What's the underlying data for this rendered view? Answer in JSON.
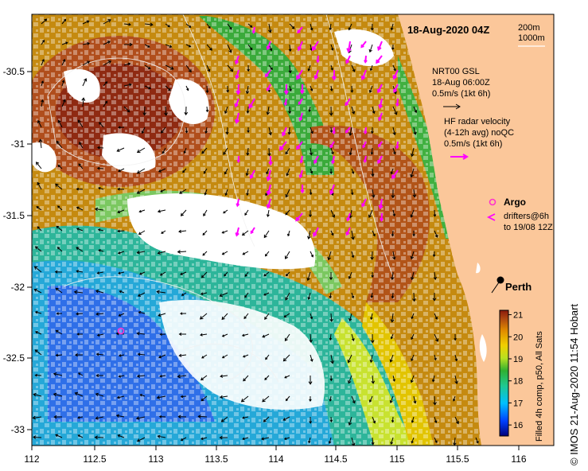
{
  "title": "18-Aug-2020 04Z",
  "depth_legend": [
    "200m",
    "1000m"
  ],
  "current_legend": {
    "name": "NRT00 GSL",
    "time": "18-Aug 06:00Z",
    "scale": "0.5m/s (1kt 6h)"
  },
  "radar_legend": {
    "name": "HF radar velocity",
    "avg": "(4-12h avg) noQC",
    "scale": "0.5m/s (1kt 6h)"
  },
  "argo_label": "Argo",
  "drifters_label": [
    "drifters@6h",
    "to 19/08 12Z"
  ],
  "city": "Perth",
  "colorbar": {
    "title": "Filled 4h comp, p50, All Sats",
    "ticks": [
      "21",
      "20",
      "19",
      "18",
      "17",
      "16"
    ],
    "min": 15.5,
    "max": 21.2
  },
  "credit": "© IMOS 21-Aug-2020 11:54 Hobart",
  "axes": {
    "x_ticks": [
      "112",
      "112.5",
      "113",
      "113.5",
      "114",
      "114.5",
      "115",
      "115.5",
      "116"
    ],
    "y_ticks": [
      "-30.5",
      "-31",
      "-31.5",
      "-32",
      "-32.5",
      "-33"
    ]
  },
  "colors": {
    "land": "#fbc79a",
    "argo": "#ff33cc",
    "radar": "#ff00ff"
  }
}
